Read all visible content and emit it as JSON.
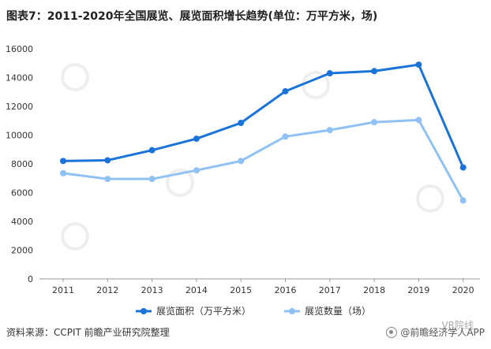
{
  "title": "图表7：2011-2020年全国展览、展览面积增长趋势(单位：万平方米，场)",
  "source": "资料来源：CCPIT 前瞻产业研究院整理",
  "credit": "@前瞻经济学人APP",
  "overlay": "VR院线",
  "colors": {
    "series1": "#1a73d9",
    "series2": "#8fc1f5",
    "axis": "#999999",
    "grid": "#dddddd",
    "tick_text": "#333333"
  },
  "chart_data": {
    "type": "line",
    "title": "图表7：2011-2020年全国展览、展览面积增长趋势(单位：万平方米，场)",
    "x": [
      "2011",
      "2012",
      "2013",
      "2014",
      "2015",
      "2016",
      "2017",
      "2018",
      "2019",
      "2020"
    ],
    "ylim": [
      0,
      16000
    ],
    "yticks": [
      0,
      2000,
      4000,
      6000,
      8000,
      10000,
      12000,
      14000,
      16000
    ],
    "grid": false,
    "legend": "bottom",
    "series": [
      {
        "name": "展览面积（万平方米）",
        "color": "#1a73d9",
        "values": [
          8200,
          8250,
          8950,
          9750,
          10850,
          13050,
          14300,
          14450,
          14900,
          7750
        ]
      },
      {
        "name": "展览数量（场）",
        "color": "#8fc1f5",
        "values": [
          7350,
          6950,
          6950,
          7550,
          8200,
          9900,
          10350,
          10900,
          11050,
          5450
        ]
      }
    ]
  }
}
